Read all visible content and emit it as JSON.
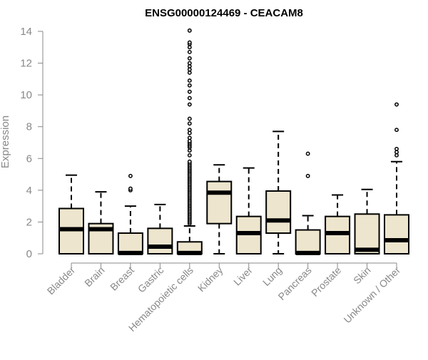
{
  "chart_data": {
    "type": "boxplot",
    "title": "ENSG00000124469 - CEACAM8",
    "xlabel": "",
    "ylabel": "Expression",
    "ylim": [
      0,
      14
    ],
    "yticks": [
      0,
      2,
      4,
      6,
      8,
      10,
      12,
      14
    ],
    "categories": [
      "Bladder",
      "Brain",
      "Breast",
      "Gastric",
      "Hematopoietic cells",
      "Kidney",
      "Liver",
      "Lung",
      "Pancreas",
      "Prostate",
      "Skin",
      "Unknown / Other"
    ],
    "boxes": [
      {
        "category": "Bladder",
        "whisker_low": 0.0,
        "q1": 0.0,
        "median": 1.55,
        "q3": 2.85,
        "whisker_high": 4.95,
        "outliers": []
      },
      {
        "category": "Brain",
        "whisker_low": 0.0,
        "q1": 0.0,
        "median": 1.55,
        "q3": 1.9,
        "whisker_high": 3.9,
        "outliers": []
      },
      {
        "category": "Breast",
        "whisker_low": 0.0,
        "q1": 0.0,
        "median": 0.05,
        "q3": 1.3,
        "whisker_high": 3.0,
        "outliers": [
          4.0,
          4.1,
          4.9
        ]
      },
      {
        "category": "Gastric",
        "whisker_low": 0.0,
        "q1": 0.0,
        "median": 0.45,
        "q3": 1.6,
        "whisker_high": 3.1,
        "outliers": []
      },
      {
        "category": "Hematopoietic cells",
        "whisker_low": 0.0,
        "q1": 0.0,
        "median": 0.05,
        "q3": 0.75,
        "whisker_high": 1.75,
        "outliers": [
          1.9,
          2.0,
          2.1,
          2.2,
          2.3,
          2.4,
          2.5,
          2.6,
          2.7,
          2.8,
          2.9,
          3.0,
          3.1,
          3.2,
          3.3,
          3.4,
          3.5,
          3.6,
          3.7,
          3.8,
          3.9,
          4.0,
          4.1,
          4.2,
          4.3,
          4.4,
          4.5,
          4.6,
          4.7,
          4.8,
          4.9,
          5.0,
          5.1,
          5.2,
          5.3,
          5.4,
          5.5,
          5.6,
          5.7,
          5.8,
          6.2,
          6.5,
          6.7,
          6.8,
          6.9,
          7.0,
          7.1,
          7.3,
          7.6,
          7.8,
          8.2,
          8.5,
          9.4,
          9.8,
          10.2,
          10.6,
          10.9,
          11.4,
          11.6,
          11.8,
          12.0,
          12.3,
          12.7,
          13.0,
          13.2,
          13.3,
          14.05
        ]
      },
      {
        "category": "Kidney",
        "whisker_low": 0.0,
        "q1": 1.9,
        "median": 3.85,
        "q3": 4.55,
        "whisker_high": 5.6,
        "outliers": []
      },
      {
        "category": "Liver",
        "whisker_low": 0.0,
        "q1": 0.0,
        "median": 1.3,
        "q3": 2.35,
        "whisker_high": 5.4,
        "outliers": []
      },
      {
        "category": "Lung",
        "whisker_low": 0.0,
        "q1": 1.3,
        "median": 2.1,
        "q3": 3.95,
        "whisker_high": 7.7,
        "outliers": []
      },
      {
        "category": "Pancreas",
        "whisker_low": 0.0,
        "q1": 0.0,
        "median": 0.05,
        "q3": 1.5,
        "whisker_high": 2.4,
        "outliers": [
          4.9,
          6.3
        ]
      },
      {
        "category": "Prostate",
        "whisker_low": 0.0,
        "q1": 0.0,
        "median": 1.3,
        "q3": 2.35,
        "whisker_high": 3.7,
        "outliers": []
      },
      {
        "category": "Skin",
        "whisker_low": 0.0,
        "q1": 0.0,
        "median": 0.25,
        "q3": 2.5,
        "whisker_high": 4.05,
        "outliers": []
      },
      {
        "category": "Unknown / Other",
        "whisker_low": 0.0,
        "q1": 0.0,
        "median": 0.85,
        "q3": 2.45,
        "whisker_high": 5.8,
        "outliers": [
          6.2,
          6.4,
          6.6,
          7.8,
          9.4
        ]
      }
    ],
    "colors": {
      "box_fill": "#ede5cd",
      "box_stroke": "#000000",
      "axis": "#888888",
      "tick_label": "#888888",
      "title": "#000000"
    },
    "grid": false,
    "legend": "none"
  }
}
